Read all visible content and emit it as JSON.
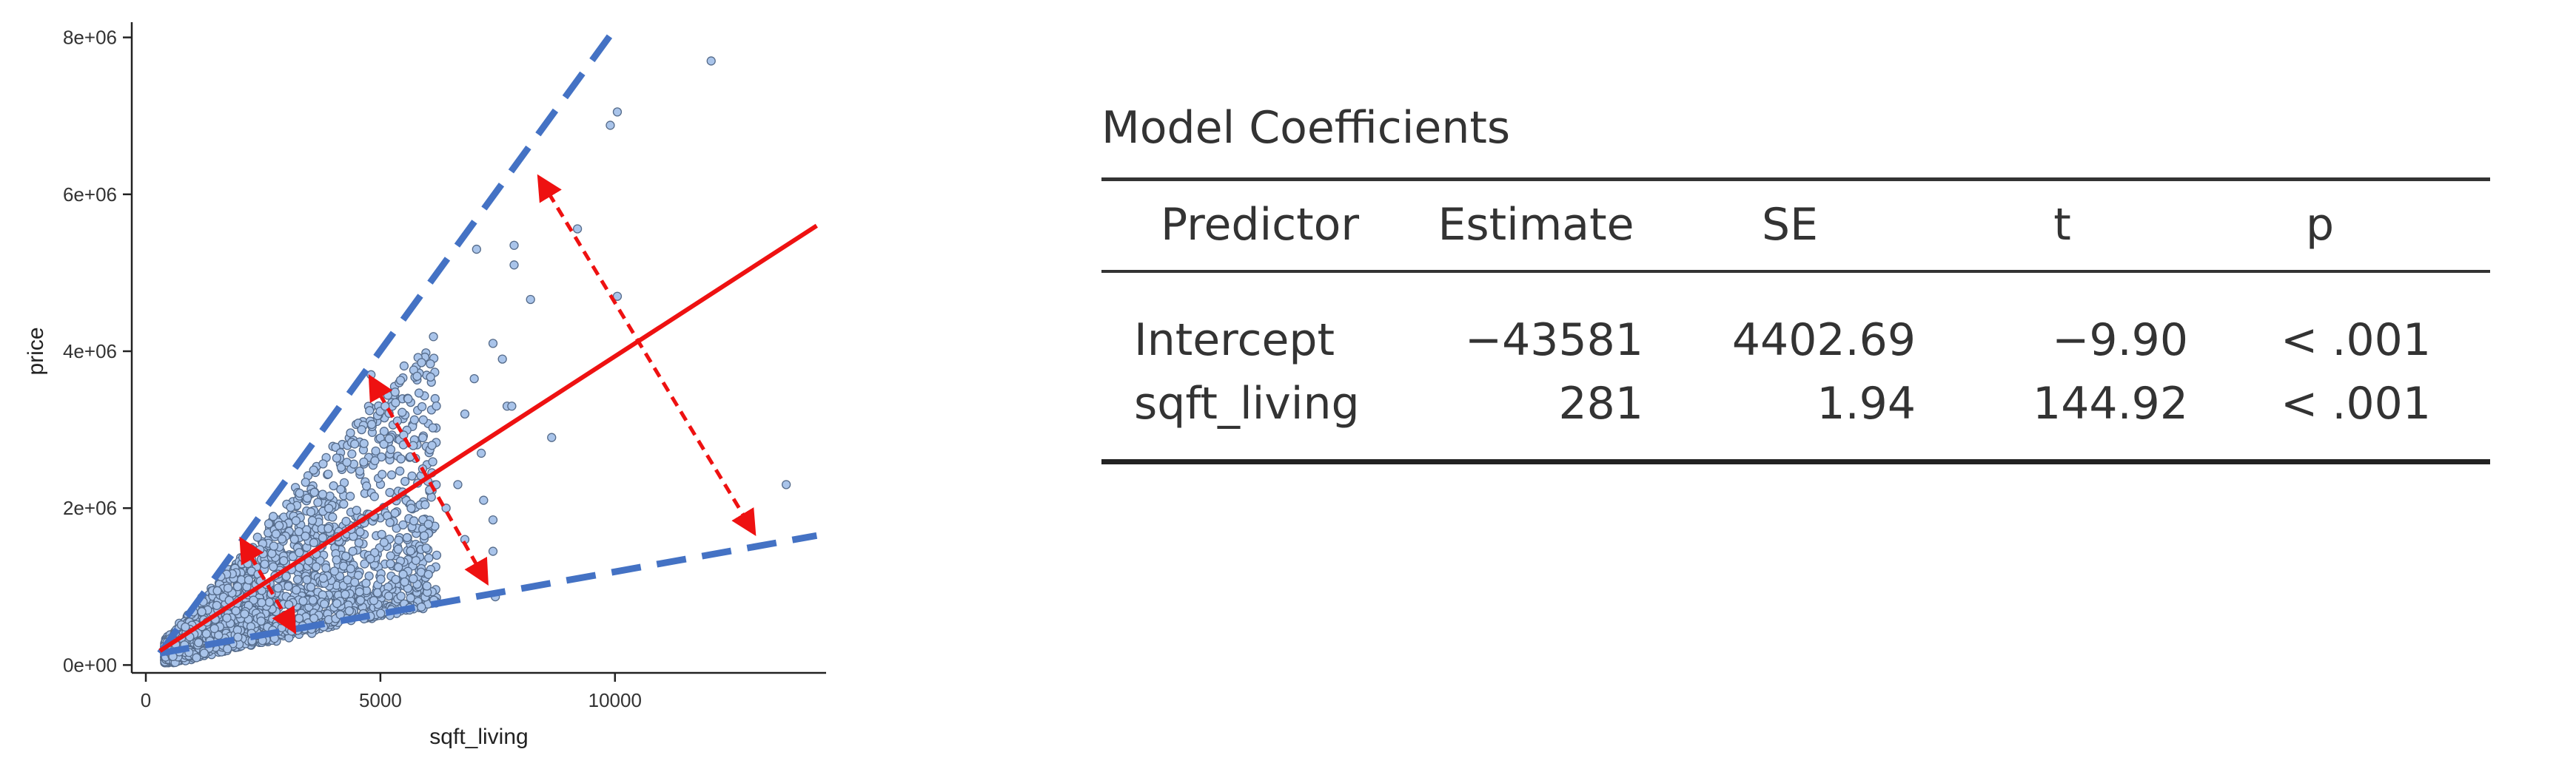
{
  "chart_data": {
    "type": "scatter",
    "xlabel": "sqft_living",
    "ylabel": "price",
    "xlim": [
      -300,
      14500
    ],
    "ylim": [
      -100000,
      8100000
    ],
    "x_ticks": [
      0,
      5000,
      10000
    ],
    "x_tick_labels": [
      "0",
      "5000",
      "10000"
    ],
    "y_ticks": [
      0,
      2000000,
      4000000,
      6000000,
      8000000
    ],
    "y_tick_labels": [
      "0e+00",
      "2e+06",
      "4e+06",
      "6e+06",
      "8e+06"
    ],
    "grid": false,
    "point_fill": "#a9c4ea",
    "point_edge": "#556b8a",
    "points": [
      [
        12050,
        7700000
      ],
      [
        10050,
        7050000
      ],
      [
        9900,
        6880000
      ],
      [
        9200,
        5560000
      ],
      [
        7850,
        5350000
      ],
      [
        7850,
        5100000
      ],
      [
        7050,
        5300000
      ],
      [
        8200,
        4660000
      ],
      [
        10050,
        4700000
      ],
      [
        7600,
        3900000
      ],
      [
        7400,
        4100000
      ],
      [
        7000,
        3650000
      ],
      [
        6800,
        3200000
      ],
      [
        7700,
        3300000
      ],
      [
        7800,
        3300000
      ],
      [
        8650,
        2900000
      ],
      [
        13650,
        2300000
      ],
      [
        7150,
        2700000
      ],
      [
        6650,
        2300000
      ],
      [
        7200,
        2100000
      ],
      [
        7400,
        1850000
      ],
      [
        6800,
        1600000
      ],
      [
        6200,
        1400000
      ],
      [
        5700,
        1100000
      ],
      [
        7450,
        870000
      ],
      [
        7400,
        1450000
      ],
      [
        5200,
        2200000
      ],
      [
        5900,
        2500000
      ],
      [
        4600,
        3000000
      ],
      [
        4800,
        3700000
      ],
      [
        5100,
        3300000
      ],
      [
        6100,
        2800000
      ],
      [
        6400,
        2000000
      ]
    ],
    "cloud": {
      "count": 2400,
      "x_range": [
        400,
        6200
      ],
      "slope_low": 130,
      "slope_high": 700
    },
    "overlays": {
      "fit_line": {
        "color": "#ee1111",
        "x": [
          300,
          14300
        ],
        "y": [
          180000,
          5600000
        ]
      },
      "boundary_upper": {
        "color": "#4472c4",
        "x": [
          300,
          10050
        ],
        "y": [
          150000,
          8150000
        ]
      },
      "boundary_lower": {
        "color": "#4472c4",
        "x": [
          300,
          14300
        ],
        "y": [
          150000,
          1650000
        ]
      },
      "arrows": [
        {
          "color": "#ee1111",
          "x": [
            8400,
            12950
          ],
          "y": [
            6200000,
            1700000
          ]
        },
        {
          "color": "#ee1111",
          "x": [
            4800,
            7250
          ],
          "y": [
            3650000,
            1070000
          ]
        },
        {
          "color": "#ee1111",
          "x": [
            2050,
            3150
          ],
          "y": [
            1580000,
            450000
          ]
        }
      ]
    }
  },
  "table": {
    "title": "Model Coefficients",
    "headers": [
      "Predictor",
      "Estimate",
      "SE",
      "t",
      "p"
    ],
    "rows": [
      [
        "Intercept",
        "−43581",
        "4402.69",
        "−9.90",
        "< .001"
      ],
      [
        "sqft_living",
        "281",
        "1.94",
        "144.92",
        "< .001"
      ]
    ]
  }
}
